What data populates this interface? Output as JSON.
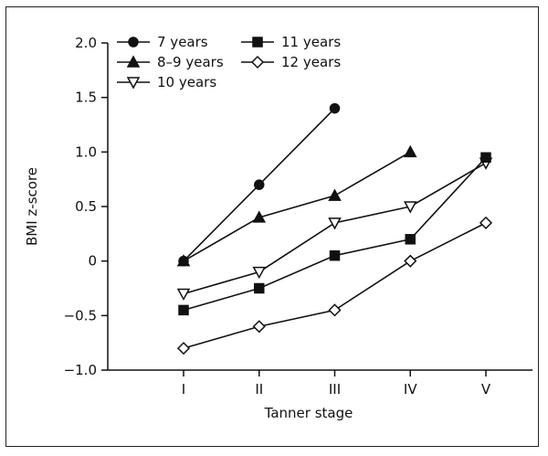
{
  "chart_data": {
    "type": "line",
    "xlabel": "Tanner stage",
    "ylabel": "BMI z-score",
    "categories": [
      "I",
      "II",
      "III",
      "IV",
      "V"
    ],
    "ylim": [
      -1.0,
      2.0
    ],
    "yticks": [
      "−1.0",
      "−0.5",
      "0",
      "0.5",
      "1.0",
      "1.5",
      "2.0"
    ],
    "ytick_values": [
      -1.0,
      -0.5,
      0,
      0.5,
      1.0,
      1.5,
      2.0
    ],
    "grid": false,
    "legend_position": "top-left",
    "series": [
      {
        "name": "7 years",
        "marker": "circle-filled",
        "values": [
          0.0,
          0.7,
          1.4,
          null,
          null
        ]
      },
      {
        "name": "8–9 years",
        "marker": "triangle-up-filled",
        "values": [
          0.0,
          0.4,
          0.6,
          1.0,
          null
        ]
      },
      {
        "name": "10 years",
        "marker": "triangle-down-open",
        "values": [
          -0.3,
          -0.1,
          0.35,
          0.5,
          0.9
        ]
      },
      {
        "name": "11 years",
        "marker": "square-filled",
        "values": [
          -0.45,
          -0.25,
          0.05,
          0.2,
          0.95
        ]
      },
      {
        "name": "12 years",
        "marker": "diamond-open",
        "values": [
          -0.8,
          -0.6,
          -0.45,
          0.0,
          0.35
        ]
      }
    ],
    "line_color": "#111111"
  }
}
